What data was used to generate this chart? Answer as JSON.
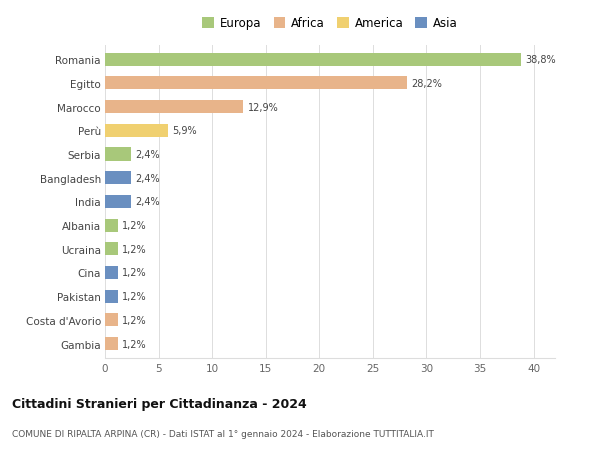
{
  "countries": [
    "Romania",
    "Egitto",
    "Marocco",
    "Perù",
    "Serbia",
    "Bangladesh",
    "India",
    "Albania",
    "Ucraina",
    "Cina",
    "Pakistan",
    "Costa d'Avorio",
    "Gambia"
  ],
  "values": [
    38.8,
    28.2,
    12.9,
    5.9,
    2.4,
    2.4,
    2.4,
    1.2,
    1.2,
    1.2,
    1.2,
    1.2,
    1.2
  ],
  "labels": [
    "38,8%",
    "28,2%",
    "12,9%",
    "5,9%",
    "2,4%",
    "2,4%",
    "2,4%",
    "1,2%",
    "1,2%",
    "1,2%",
    "1,2%",
    "1,2%",
    "1,2%"
  ],
  "colors": [
    "#a8c87a",
    "#e8b48a",
    "#e8b48a",
    "#f0d070",
    "#a8c87a",
    "#6a8fc0",
    "#6a8fc0",
    "#a8c87a",
    "#a8c87a",
    "#6a8fc0",
    "#6a8fc0",
    "#e8b48a",
    "#e8b48a"
  ],
  "legend_labels": [
    "Europa",
    "Africa",
    "America",
    "Asia"
  ],
  "legend_colors": [
    "#a8c87a",
    "#e8b48a",
    "#f0d070",
    "#6a8fc0"
  ],
  "title1": "Cittadini Stranieri per Cittadinanza - 2024",
  "title2": "COMUNE DI RIPALTA ARPINA (CR) - Dati ISTAT al 1° gennaio 2024 - Elaborazione TUTTITALIA.IT",
  "xlim": [
    0,
    42
  ],
  "xticks": [
    0,
    5,
    10,
    15,
    20,
    25,
    30,
    35,
    40
  ],
  "bg_color": "#ffffff",
  "grid_color": "#dddddd",
  "bar_height": 0.55
}
